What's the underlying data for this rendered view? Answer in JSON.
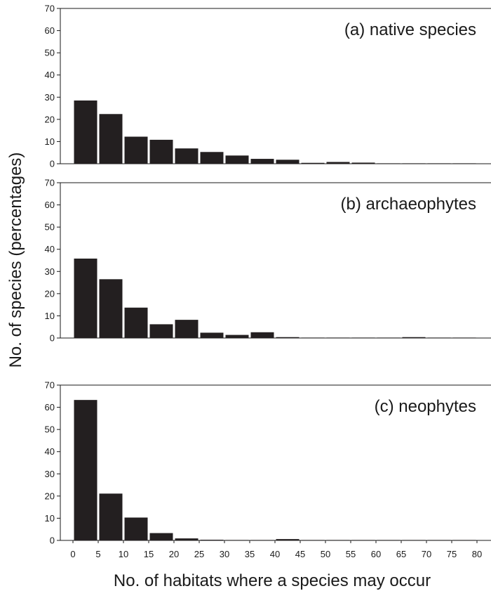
{
  "ylabel": "No. of species (percentages)",
  "xlabel": "No. of habitats where a species may occur",
  "x_tick_labels": [
    "0",
    "5",
    "10",
    "15",
    "20",
    "25",
    "30",
    "35",
    "40",
    "45",
    "50",
    "55",
    "60",
    "65",
    "70",
    "75",
    "80"
  ],
  "y_tick_labels": [
    "0",
    "10",
    "20",
    "30",
    "40",
    "50",
    "60",
    "70"
  ],
  "colors": {
    "bar": "#231f20",
    "axis": "#1a1a1a"
  },
  "chart_data": [
    {
      "type": "bar",
      "title": "(a) native species",
      "bin_starts": [
        0,
        5,
        10,
        15,
        20,
        25,
        30,
        35,
        40,
        45,
        50,
        55,
        60,
        65,
        70,
        75
      ],
      "bin_width": 5,
      "values": [
        28.5,
        22.4,
        12.2,
        10.8,
        6.9,
        5.3,
        3.7,
        2.2,
        1.8,
        0.4,
        0.8,
        0.5,
        0.2,
        0.2,
        0.2,
        0.2
      ],
      "xlabel": "No. of habitats where a species may occur",
      "ylabel": "No. of species (percentages)",
      "xlim": [
        0,
        80
      ],
      "ylim": [
        0,
        70
      ]
    },
    {
      "type": "bar",
      "title": "(b) archaeophytes",
      "bin_starts": [
        0,
        5,
        10,
        15,
        20,
        25,
        30,
        35,
        40,
        45,
        50,
        55,
        60,
        65,
        70,
        75
      ],
      "bin_width": 5,
      "values": [
        35.8,
        26.5,
        13.7,
        6.2,
        8.2,
        2.4,
        1.4,
        2.6,
        0.4,
        0.2,
        0.2,
        0.2,
        0.2,
        0.4,
        0.2,
        0.2
      ],
      "xlabel": "No. of habitats where a species may occur",
      "ylabel": "No. of species (percentages)",
      "xlim": [
        0,
        80
      ],
      "ylim": [
        0,
        70
      ]
    },
    {
      "type": "bar",
      "title": "(c) neophytes",
      "bin_starts": [
        0,
        5,
        10,
        15,
        20,
        25,
        30,
        35,
        40,
        45,
        50,
        55,
        60,
        65,
        70,
        75
      ],
      "bin_width": 5,
      "values": [
        63.3,
        21.1,
        10.3,
        3.3,
        0.9,
        0.3,
        0.2,
        0.2,
        0.6,
        0.2,
        0.2,
        0.2,
        0.2,
        0.2,
        0.2,
        0.2
      ],
      "xlabel": "No. of habitats where a species may occur",
      "ylabel": "No. of species (percentages)",
      "xlim": [
        0,
        80
      ],
      "ylim": [
        0,
        70
      ]
    }
  ]
}
